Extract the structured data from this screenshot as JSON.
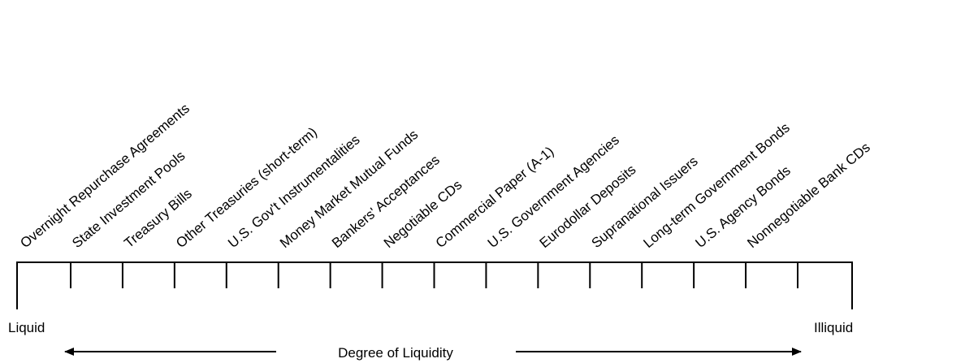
{
  "title": null,
  "items": [
    "Overnight Repurchase Agreements",
    "State Investment Pools",
    "Treasury Bills",
    "Other Treasuries (short-term)",
    "U.S. Gov't Instrumentalities",
    "Money Market Mutual Funds",
    "Bankers' Acceptances",
    "Negotiable CDs",
    "Commercial Paper (A-1)",
    "U.S. Government Agencies",
    "Eurodollar Deposits",
    "Supranational Issuers",
    "Long-term Government Bonds",
    "U.S. Agency Bonds",
    "Nonnegotiable Bank CDs"
  ],
  "left_label": "Liquid",
  "right_label": "Illiquid",
  "axis_label": "Degree of Liquidity"
}
